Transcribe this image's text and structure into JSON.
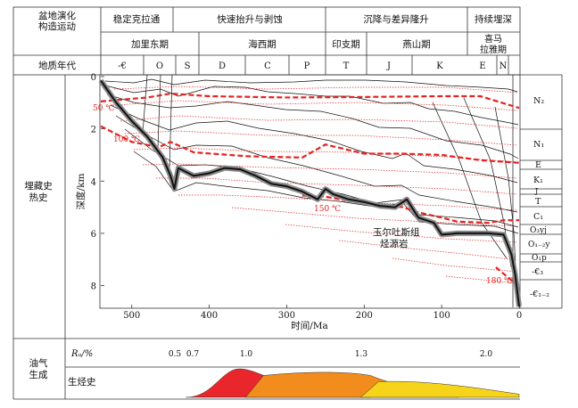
{
  "header": {
    "basin_evolution_label_l1": "盆地演化",
    "basin_evolution_label_l2": "构造运动",
    "stages": [
      "稳定克拉通",
      "快速抬升与剥蚀",
      "沉降与差异隆升",
      "持续埋深"
    ],
    "movements": [
      "加里东期",
      "海西期",
      "印支期",
      "燕山期",
      "喜马",
      "拉雅期"
    ],
    "geologic_age_label": "地质年代",
    "periods": [
      "-€",
      "O",
      "S",
      "D",
      "C",
      "P",
      "T",
      "J",
      "K",
      "E",
      "N"
    ]
  },
  "burial": {
    "section_label_l1": "埋藏史",
    "section_label_l2": "热史",
    "ylabel": "深度/km",
    "xlabel": "时间/Ma",
    "y_ticks": [
      "0",
      "2",
      "4",
      "6",
      "8"
    ],
    "x_ticks": [
      "500",
      "400",
      "300",
      "200",
      "100",
      "0"
    ],
    "isotherms": [
      "50 ℃",
      "100 ℃",
      "150 ℃",
      "180 ℃"
    ],
    "source_rock_l1": "玉尔吐斯组",
    "source_rock_l2": "烃源岩"
  },
  "right_strata": [
    "N₂",
    "N₁",
    "E",
    "K₁",
    "J",
    "T",
    "C₁",
    "O₃yj",
    "O₁₋₂y",
    "O₁p",
    "-€₃",
    "-€₁₋₂"
  ],
  "hydrocarbon": {
    "section_label_l1": "油气",
    "section_label_l2": "生成",
    "ro_label": "Rₒ/%",
    "ro_ticks": [
      "0.5",
      "0.7",
      "1.0",
      "1.3",
      "2.0"
    ],
    "generation_label": "生烃史"
  },
  "chart_data": {
    "type": "line",
    "title": "",
    "xlabel": "时间/Ma",
    "ylabel": "深度/km",
    "xlim": [
      540,
      0
    ],
    "ylim": [
      0,
      8.8
    ],
    "x_ticks": [
      500,
      400,
      300,
      200,
      100,
      0
    ],
    "y_ticks": [
      0,
      2,
      4,
      6,
      8
    ],
    "series": [
      {
        "name": "玉尔吐斯组",
        "x": [
          540,
          520,
          500,
          480,
          460,
          450,
          445,
          440,
          420,
          400,
          380,
          360,
          340,
          320,
          300,
          280,
          260,
          250,
          240,
          220,
          200,
          180,
          160,
          145,
          130,
          110,
          100,
          80,
          60,
          40,
          20,
          10,
          5,
          0
        ],
        "y": [
          0.15,
          1.0,
          1.7,
          2.3,
          3.1,
          3.8,
          4.3,
          3.5,
          3.8,
          3.7,
          3.5,
          3.55,
          3.8,
          4.1,
          4.2,
          4.4,
          4.7,
          4.3,
          4.5,
          4.7,
          4.8,
          4.95,
          5.0,
          4.7,
          5.4,
          5.6,
          6.05,
          6.0,
          6.0,
          6.0,
          6.05,
          6.8,
          7.6,
          8.8
        ]
      }
    ],
    "isotherms": [
      {
        "label": "50 ℃",
        "x": [
          540,
          480,
          450,
          400,
          300,
          200,
          100,
          50,
          0
        ],
        "y": [
          0.95,
          0.8,
          0.65,
          0.75,
          0.8,
          0.78,
          0.75,
          0.75,
          1.2
        ]
      },
      {
        "label": "100 ℃",
        "x": [
          540,
          500,
          465,
          450,
          420,
          350,
          280,
          250,
          200,
          150,
          100,
          50,
          0
        ],
        "y": [
          1.9,
          2.5,
          2.7,
          2.5,
          2.9,
          3.05,
          3.1,
          2.6,
          2.95,
          2.95,
          3.0,
          3.2,
          3.3
        ]
      },
      {
        "label": "150 ℃",
        "x": [
          280,
          250,
          200,
          150,
          130,
          100,
          80,
          40,
          20,
          0
        ],
        "y": [
          4.55,
          4.6,
          4.85,
          5.0,
          5.2,
          5.4,
          5.55,
          5.6,
          5.5,
          5.5
        ]
      },
      {
        "label": "180 ℃",
        "x": [
          30,
          10,
          0
        ],
        "y": [
          7.3,
          7.8,
          8.0
        ]
      }
    ],
    "generation": {
      "ro_ticks": [
        0.5,
        0.7,
        1.0,
        1.3,
        2.0
      ],
      "phases": [
        {
          "color": "#e8262b",
          "x": [
            430,
            330
          ],
          "peak": 1.0
        },
        {
          "color": "#f28c1c",
          "x": [
            330,
            170
          ],
          "peak": 0.85
        },
        {
          "color": "#f5d41a",
          "x": [
            170,
            0
          ],
          "peak": 0.55
        }
      ]
    }
  }
}
